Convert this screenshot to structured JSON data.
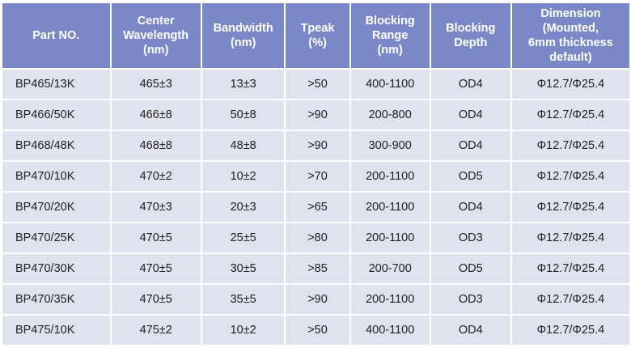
{
  "table": {
    "headers": [
      [
        "Part NO."
      ],
      [
        "Center",
        "Wavelength",
        "(nm)"
      ],
      [
        "Bandwidth",
        "(nm)"
      ],
      [
        "Tpeak",
        "(%)"
      ],
      [
        "Blocking",
        "Range",
        "(nm)"
      ],
      [
        "Blocking",
        "Depth"
      ],
      [
        "Dimension",
        "(Mounted,",
        "6mm thickness",
        "default)"
      ]
    ],
    "rows": [
      [
        "BP465/13K",
        "465±3",
        "13±3",
        ">50",
        "400-1100",
        "OD4",
        "Φ12.7/Φ25.4"
      ],
      [
        "BP466/50K",
        "466±8",
        "50±8",
        ">90",
        "200-800",
        "OD4",
        "Φ12.7/Φ25.4"
      ],
      [
        "BP468/48K",
        "468±8",
        "48±8",
        ">90",
        "300-900",
        "OD4",
        "Φ12.7/Φ25.4"
      ],
      [
        "BP470/10K",
        "470±2",
        "10±2",
        ">70",
        "200-1100",
        "OD5",
        "Φ12.7/Φ25.4"
      ],
      [
        "BP470/20K",
        "470±3",
        "20±3",
        ">65",
        "200-1100",
        "OD4",
        "Φ12.7/Φ25.4"
      ],
      [
        "BP470/25K",
        "470±5",
        "25±5",
        ">80",
        "200-1100",
        "OD3",
        "Φ12.7/Φ25.4"
      ],
      [
        "BP470/30K",
        "470±5",
        "30±5",
        ">85",
        "200-700",
        "OD5",
        "Φ12.7/Φ25.4"
      ],
      [
        "BP470/35K",
        "470±5",
        "35±5",
        ">90",
        "200-1100",
        "OD3",
        "Φ12.7/Φ25.4"
      ],
      [
        "BP475/10K",
        "475±2",
        "10±2",
        ">50",
        "400-1100",
        "OD4",
        "Φ12.7/Φ25.4"
      ]
    ],
    "colors": {
      "header_bg": "#7b88c8",
      "cell_bg": "#e0e2ee"
    }
  }
}
